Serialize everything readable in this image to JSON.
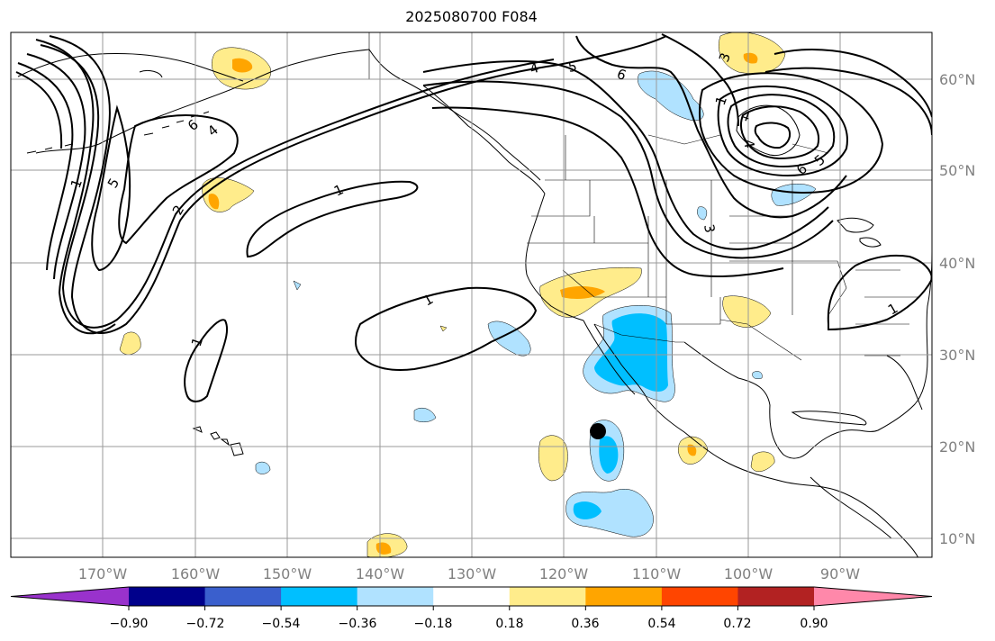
{
  "title": "2025080700 F084",
  "latitude_labels": [
    "60°N",
    "50°N",
    "40°N",
    "30°N",
    "20°N",
    "10°N"
  ],
  "longitude_labels": [
    "170°W",
    "160°W",
    "150°W",
    "140°W",
    "130°W",
    "120°W",
    "110°W",
    "100°W",
    "90°W"
  ],
  "colorbar": {
    "colors": [
      "#9932cc",
      "#00008b",
      "#3a5fcd",
      "#00bfff",
      "#b0e2ff",
      "#ffffff",
      "#ffec8b",
      "#ffa500",
      "#ff4500",
      "#b22222",
      "#ff88aa"
    ],
    "tick_labels": [
      "−0.90",
      "−0.72",
      "−0.54",
      "−0.36",
      "−0.18",
      "0.18",
      "0.36",
      "0.54",
      "0.72",
      "0.90"
    ]
  },
  "contour_labels": [
    "1",
    "1",
    "1",
    "1",
    "1",
    "2",
    "4",
    "5",
    "6",
    "4",
    "5",
    "6",
    "6",
    "5",
    "3",
    "3",
    "1",
    "4",
    "4"
  ],
  "marker": "storm-center"
}
